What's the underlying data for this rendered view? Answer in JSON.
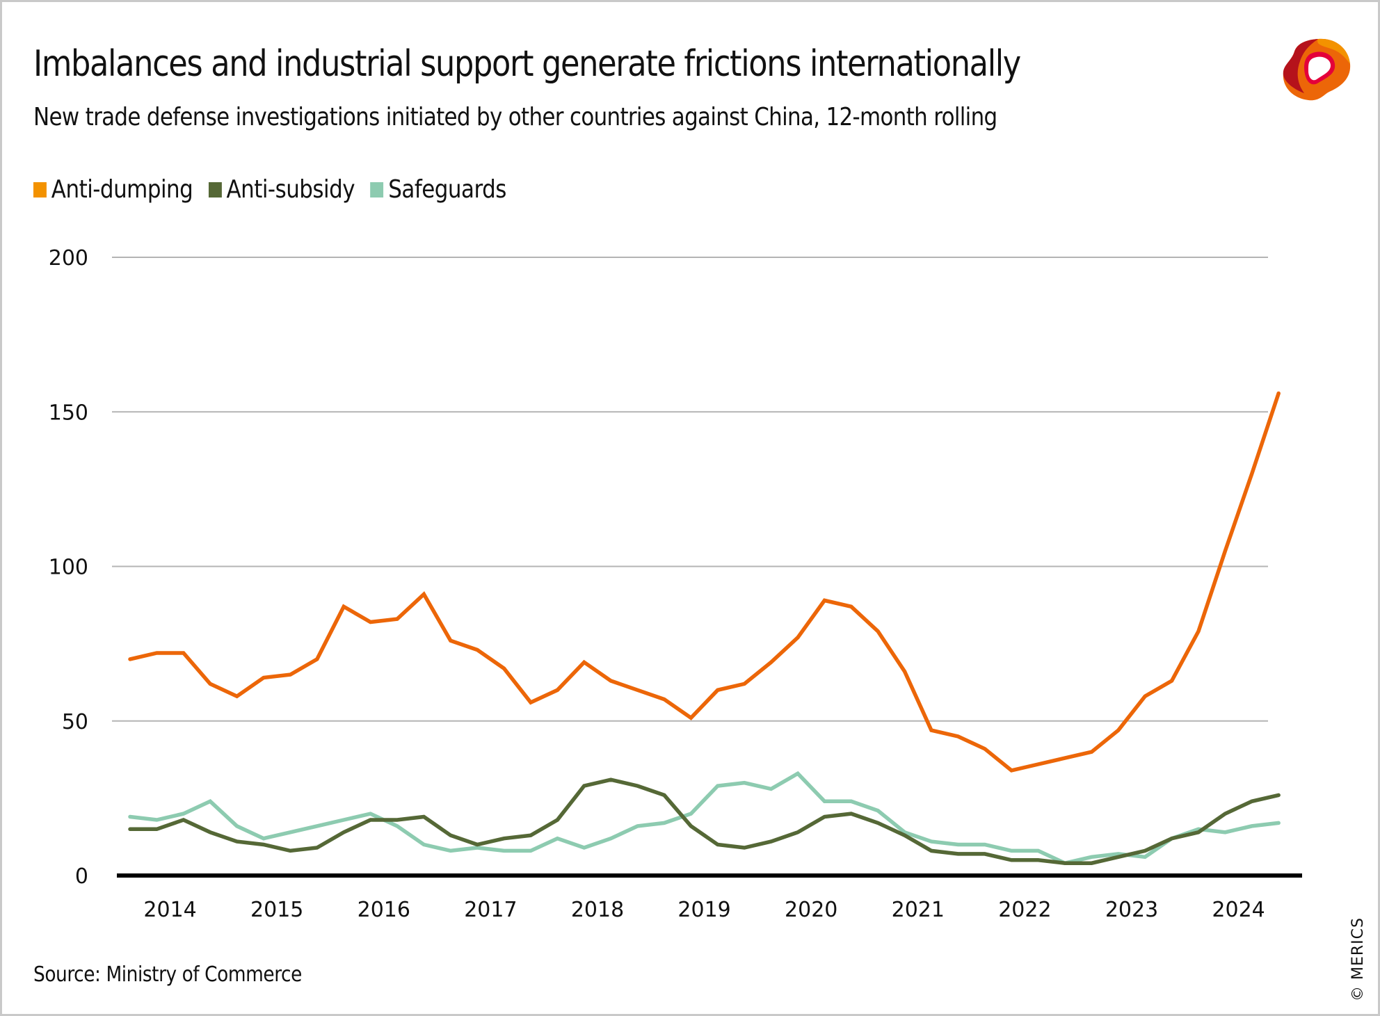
{
  "header": {
    "title": "Imbalances and industrial support generate frictions internationally",
    "subtitle": "New trade defense investigations initiated by other countries against China, 12-month rolling",
    "logo": "merics-logo-icon"
  },
  "footer": {
    "source": "Source: Ministry of Commerce",
    "copyright": "© MERICS"
  },
  "legend": [
    {
      "label": "Anti-dumping",
      "color": "#F39200"
    },
    {
      "label": "Anti-subsidy",
      "color": "#556836"
    },
    {
      "label": "Safeguards",
      "color": "#8DCBB0"
    }
  ],
  "chart_data": {
    "type": "line",
    "title": "Imbalances and industrial support generate frictions internationally",
    "subtitle": "New trade defense investigations initiated by other countries against China, 12-month rolling",
    "xlabel": "",
    "ylabel": "",
    "ylim": [
      0,
      200
    ],
    "yticks": [
      0,
      50,
      100,
      150,
      200
    ],
    "grid": true,
    "legend_position": "top-left",
    "x_tick_labels": [
      "2014",
      "2015",
      "2016",
      "2017",
      "2018",
      "2019",
      "2020",
      "2021",
      "2022",
      "2023",
      "2024"
    ],
    "x_frequency": "quarterly",
    "x": [
      "2014Q1",
      "2014Q2",
      "2014Q3",
      "2014Q4",
      "2015Q1",
      "2015Q2",
      "2015Q3",
      "2015Q4",
      "2016Q1",
      "2016Q2",
      "2016Q3",
      "2016Q4",
      "2017Q1",
      "2017Q2",
      "2017Q3",
      "2017Q4",
      "2018Q1",
      "2018Q2",
      "2018Q3",
      "2018Q4",
      "2019Q1",
      "2019Q2",
      "2019Q3",
      "2019Q4",
      "2020Q1",
      "2020Q2",
      "2020Q3",
      "2020Q4",
      "2021Q1",
      "2021Q2",
      "2021Q3",
      "2021Q4",
      "2022Q1",
      "2022Q2",
      "2022Q3",
      "2022Q4",
      "2023Q1",
      "2023Q2",
      "2023Q3",
      "2023Q4",
      "2024Q1",
      "2024Q2",
      "2024Q3",
      "2024Q4"
    ],
    "series": [
      {
        "name": "Anti-dumping",
        "color": "#EC6608",
        "values": [
          70,
          72,
          72,
          62,
          58,
          64,
          65,
          70,
          87,
          82,
          83,
          91,
          76,
          73,
          67,
          56,
          60,
          69,
          63,
          60,
          57,
          51,
          60,
          62,
          69,
          77,
          89,
          87,
          79,
          66,
          47,
          45,
          41,
          34,
          36,
          38,
          40,
          47,
          58,
          63,
          79,
          105,
          130,
          156
        ]
      },
      {
        "name": "Anti-subsidy",
        "color": "#556836",
        "values": [
          15,
          15,
          18,
          14,
          11,
          10,
          8,
          9,
          14,
          18,
          18,
          19,
          13,
          10,
          12,
          13,
          18,
          29,
          31,
          29,
          26,
          16,
          10,
          9,
          11,
          14,
          19,
          20,
          17,
          13,
          8,
          7,
          7,
          5,
          5,
          4,
          4,
          6,
          8,
          12,
          14,
          20,
          24,
          26
        ]
      },
      {
        "name": "Safeguards",
        "color": "#8DCBB0",
        "values": [
          19,
          18,
          20,
          24,
          16,
          12,
          14,
          16,
          18,
          20,
          16,
          10,
          8,
          9,
          8,
          8,
          12,
          9,
          12,
          16,
          17,
          20,
          29,
          30,
          28,
          33,
          24,
          24,
          21,
          14,
          11,
          10,
          10,
          8,
          8,
          4,
          6,
          7,
          6,
          12,
          15,
          14,
          16,
          17
        ]
      }
    ]
  }
}
